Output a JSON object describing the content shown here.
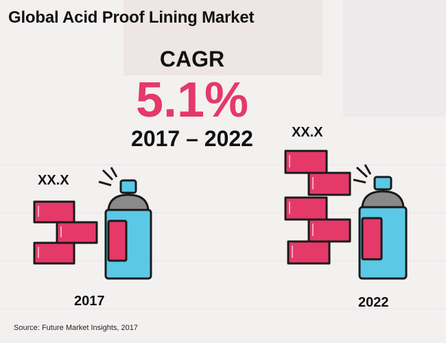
{
  "title": "Global Acid Proof Lining Market",
  "cagr": {
    "label": "CAGR",
    "value": "5.1%",
    "period": "2017 – 2022"
  },
  "items": [
    {
      "value": "XX.X",
      "year": "2017"
    },
    {
      "value": "XX.X",
      "year": "2022"
    }
  ],
  "source": "Source: Future Market Insights, 2017",
  "colors": {
    "brick": "#e5396a",
    "outline": "#1a1a1a",
    "can": "#5bc8e6",
    "can_top": "#8a8a8a",
    "accent": "#e5396a"
  },
  "icons": [
    "brick-stack-icon",
    "spray-can-icon"
  ]
}
